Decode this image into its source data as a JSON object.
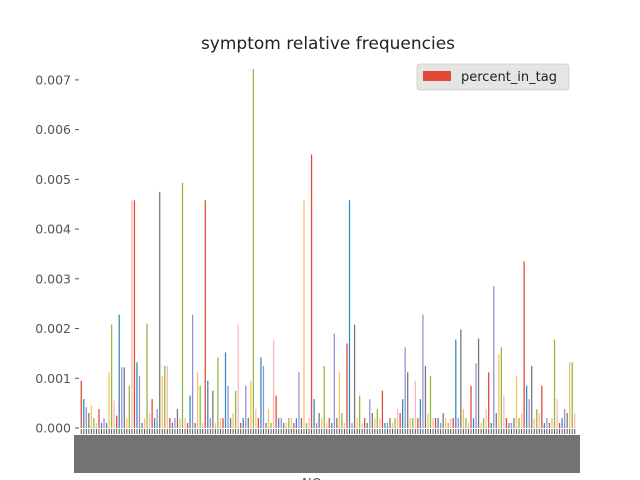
{
  "chart_data": {
    "type": "bar",
    "title": "symptom relative frequencies",
    "xlabel": "NO",
    "ylabel": "",
    "ylim": [
      0,
      0.0074
    ],
    "yticks": [
      "0.000",
      "0.001",
      "0.002",
      "0.003",
      "0.004",
      "0.005",
      "0.006",
      "0.007"
    ],
    "legend": {
      "entries": [
        "percent_in_tag"
      ],
      "placement": "top-right",
      "swatch_color": "#E24A33"
    },
    "grid": false,
    "palette": [
      "#E24A33",
      "#348ABD",
      "#988ED5",
      "#777777",
      "#FBC15E",
      "#8EBA42",
      "#FFB5B8"
    ],
    "series": [
      {
        "name": "percent_in_tag",
        "values": [
          0.00095,
          0.00058,
          0.00042,
          0.0003,
          0.00045,
          0.0002,
          0.0001,
          0.00038,
          0.0001,
          0.0002,
          0.0001,
          0.00112,
          0.00208,
          0.00055,
          0.00025,
          0.00228,
          0.00122,
          0.00122,
          0.0002,
          0.00085,
          0.00458,
          0.00458,
          0.00132,
          0.00105,
          0.0001,
          0.0002,
          0.0021,
          0.0003,
          0.00058,
          0.0002,
          0.00038,
          0.00475,
          0.00105,
          0.00125,
          0.00125,
          0.0002,
          0.0001,
          0.0002,
          0.00038,
          0.0002,
          0.00493,
          0.0002,
          0.0001,
          0.00065,
          0.00228,
          0.0001,
          0.00112,
          0.00085,
          0.0001,
          0.00458,
          0.00095,
          0.0002,
          0.00075,
          0.0001,
          0.00142,
          0.0002,
          0.0002,
          0.00152,
          0.00085,
          0.0002,
          0.0003,
          0.00075,
          0.00208,
          0.0001,
          0.0002,
          0.00085,
          0.0002,
          0.00095,
          0.00722,
          0.00038,
          0.0002,
          0.00142,
          0.00125,
          0.0001,
          0.00038,
          0.0001,
          0.00178,
          0.00065,
          0.0002,
          0.0002,
          0.0001,
          0.0001,
          0.0002,
          0.0002,
          0.0001,
          0.0002,
          0.00112,
          0.0002,
          0.00458,
          0.0001,
          0.0002,
          0.0055,
          0.00058,
          0.0001,
          0.0003,
          0.0002,
          0.00125,
          0.0001,
          0.0002,
          0.0001,
          0.0019,
          0.0002,
          0.00112,
          0.0003,
          0.0001,
          0.0017,
          0.00458,
          0.0001,
          0.00208,
          0.0002,
          0.00065,
          0.0001,
          0.0002,
          0.0001,
          0.00058,
          0.0003,
          0.0002,
          0.00038,
          0.0002,
          0.00075,
          0.0001,
          0.0001,
          0.0002,
          0.0001,
          0.0002,
          0.00038,
          0.0003,
          0.00058,
          0.00162,
          0.00112,
          0.0002,
          0.0002,
          0.00095,
          0.0002,
          0.00058,
          0.00228,
          0.00125,
          0.0003,
          0.00105,
          0.0002,
          0.0002,
          0.0002,
          0.0001,
          0.0003,
          0.0002,
          0.0001,
          0.0002,
          0.0002,
          0.00178,
          0.0002,
          0.00198,
          0.00038,
          0.0002,
          0.0001,
          0.00085,
          0.0002,
          0.0013,
          0.0018,
          0.0001,
          0.0002,
          0.00038,
          0.00112,
          0.0001,
          0.00285,
          0.0003,
          0.00148,
          0.00162,
          0.00065,
          0.0002,
          0.0001,
          0.0001,
          0.0002,
          0.00105,
          0.0002,
          0.0003,
          0.00335,
          0.00085,
          0.00058,
          0.00125,
          0.0002,
          0.00038,
          0.0003,
          0.00085,
          0.0001,
          0.0002,
          0.0001,
          0.0002,
          0.00178,
          0.00058,
          0.0001,
          0.0002,
          0.00038,
          0.0003,
          0.00132,
          0.00132,
          0.0003
        ]
      }
    ]
  }
}
